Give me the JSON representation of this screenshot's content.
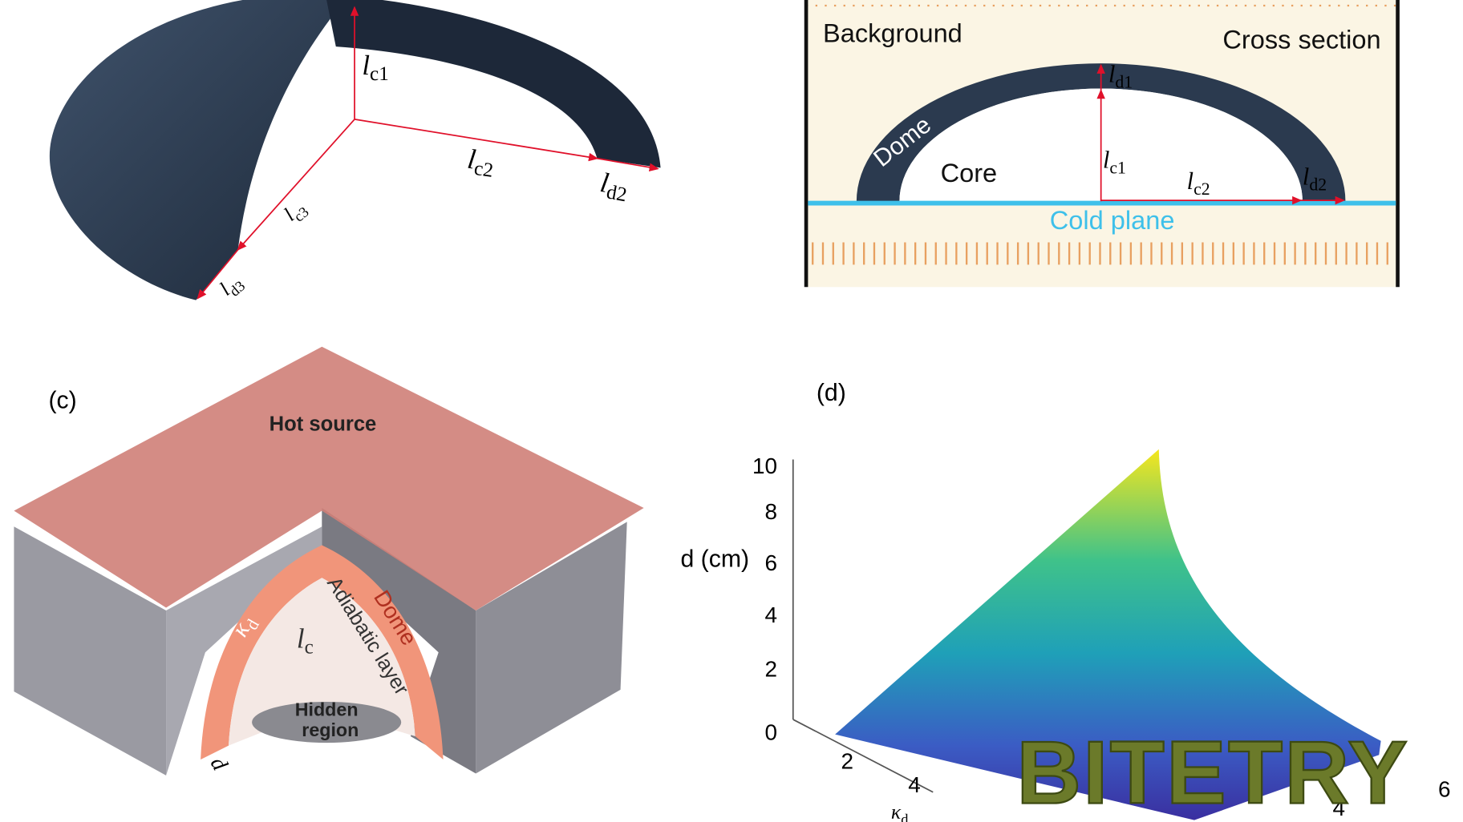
{
  "panel_a": {
    "labels": [
      {
        "symbol": "l",
        "sub": "c1"
      },
      {
        "symbol": "l",
        "sub": "c2"
      },
      {
        "symbol": "l",
        "sub": "d2"
      },
      {
        "symbol": "l",
        "sub": "c3"
      },
      {
        "symbol": "l",
        "sub": "d3"
      }
    ]
  },
  "panel_b": {
    "background": "Background",
    "cross_section": "Cross section",
    "dome": "Dome",
    "core": "Core",
    "cold_plane": "Cold plane",
    "labels": [
      {
        "symbol": "l",
        "sub": "d1"
      },
      {
        "symbol": "l",
        "sub": "c1"
      },
      {
        "symbol": "l",
        "sub": "c2"
      },
      {
        "symbol": "l",
        "sub": "d2"
      }
    ]
  },
  "panel_c": {
    "tag": "(c)",
    "hot_source": "Hot source",
    "kappa": {
      "symbol": "κ",
      "sub": "d"
    },
    "lc": {
      "symbol": "l",
      "sub": "c"
    },
    "dome": "Dome",
    "adiabatic": "Adiabatic layer",
    "hidden": [
      "Hidden",
      "region"
    ],
    "d": "d"
  },
  "panel_d": {
    "tag": "(d)",
    "zlabel": "d (cm)",
    "zticks": [
      10,
      8,
      6,
      4,
      2,
      0
    ],
    "xticks": [
      2,
      4
    ],
    "xlabel": {
      "symbol": "κ",
      "sub": "d"
    },
    "yticks": [
      6,
      4
    ]
  },
  "watermark": "BITETRY"
}
